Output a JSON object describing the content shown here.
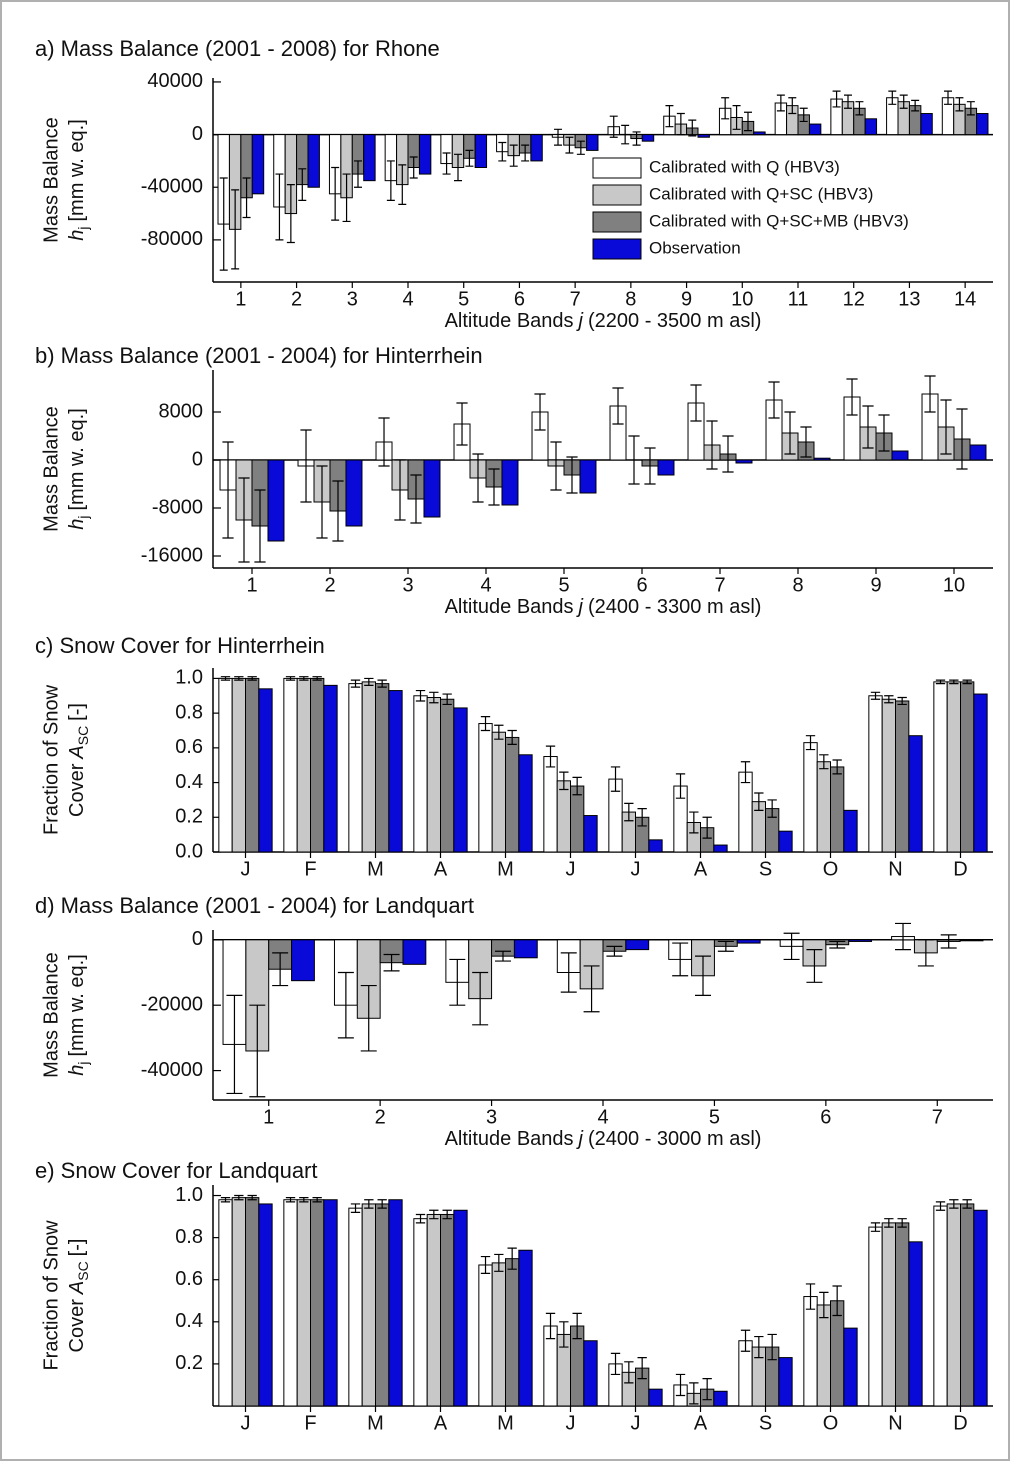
{
  "chart_data": [
    {
      "type": "bar",
      "title": "a) Mass Balance (2001 - 2008) for Rhone",
      "ylabel": "Mass Balance",
      "ylabel2": {
        "symbol": "h",
        "subscript": "j",
        "after": "[mm w. eq.]"
      },
      "xlabel": {
        "before": "Altitude Bands",
        "symbol": "j",
        "after": "(2200 - 3500 m asl)"
      },
      "categories": [
        "1",
        "2",
        "3",
        "4",
        "5",
        "6",
        "7",
        "8",
        "9",
        "10",
        "11",
        "12",
        "13",
        "14"
      ],
      "ylim": [
        -112000,
        43000
      ],
      "yticks": [
        40000,
        0,
        -40000,
        -80000
      ],
      "legend": "right",
      "series": [
        {
          "name": "Calibrated with Q (HBV3)",
          "color": "#ffffff",
          "values": [
            -68000,
            -55000,
            -45000,
            -35000,
            -22000,
            -13000,
            -2000,
            6000,
            14000,
            20000,
            24000,
            27000,
            28000,
            28000
          ],
          "errors": [
            35000,
            25000,
            20000,
            15000,
            8000,
            7000,
            6000,
            8000,
            8000,
            8000,
            6000,
            6000,
            5000,
            5000
          ]
        },
        {
          "name": "Calibrated with Q+SC (HBV3)",
          "color": "#c8c8c8",
          "values": [
            -72000,
            -60000,
            -48000,
            -38000,
            -25000,
            -16000,
            -8000,
            0,
            8000,
            13000,
            22000,
            25000,
            25000,
            23000
          ],
          "errors": [
            30000,
            22000,
            18000,
            15000,
            10000,
            8000,
            6000,
            7000,
            8000,
            9000,
            6000,
            5000,
            5000,
            5000
          ]
        },
        {
          "name": "Calibrated with Q+SC+MB (HBV3)",
          "color": "#808080",
          "values": [
            -48000,
            -38000,
            -30000,
            -25000,
            -18000,
            -14000,
            -10000,
            -3000,
            5000,
            10000,
            15000,
            20000,
            22000,
            20000
          ],
          "errors": [
            15000,
            12000,
            10000,
            8000,
            6000,
            6000,
            5000,
            5000,
            6000,
            7000,
            5000,
            5000,
            4000,
            5000
          ]
        },
        {
          "name": "Observation",
          "color": "#0a0ad8",
          "values": [
            -45000,
            -40000,
            -35000,
            -30000,
            -25000,
            -20000,
            -12000,
            -5000,
            -2000,
            2000,
            8000,
            12000,
            16000,
            16000
          ]
        }
      ]
    },
    {
      "type": "bar",
      "title": "b) Mass Balance (2001 - 2004) for Hinterrhein",
      "ylabel": "Mass Balance",
      "ylabel2": {
        "symbol": "h",
        "subscript": "j",
        "after": "[mm w. eq.]"
      },
      "xlabel": {
        "before": "Altitude Bands",
        "symbol": "j",
        "after": "(2400 - 3300 m asl)"
      },
      "categories": [
        "1",
        "2",
        "3",
        "4",
        "5",
        "6",
        "7",
        "8",
        "9",
        "10"
      ],
      "ylim": [
        -18000,
        15000
      ],
      "yticks": [
        8000,
        0,
        -8000,
        -16000
      ],
      "series": [
        {
          "color": "#ffffff",
          "values": [
            -5000,
            -1000,
            3000,
            6000,
            8000,
            9000,
            9500,
            10000,
            10500,
            11000
          ],
          "errors": [
            8000,
            6000,
            4000,
            3500,
            3000,
            3000,
            3000,
            3000,
            3000,
            3000
          ]
        },
        {
          "color": "#c8c8c8",
          "values": [
            -10000,
            -7000,
            -5000,
            -3000,
            -1000,
            0,
            2500,
            4500,
            5500,
            5500
          ],
          "errors": [
            7000,
            6000,
            5000,
            4000,
            4000,
            4000,
            4000,
            3500,
            3500,
            4500
          ]
        },
        {
          "color": "#808080",
          "values": [
            -11000,
            -8500,
            -6500,
            -4500,
            -2500,
            -1000,
            1000,
            3000,
            4500,
            3500
          ],
          "errors": [
            6000,
            5000,
            4000,
            3000,
            3000,
            3000,
            3000,
            2500,
            3000,
            5000
          ]
        },
        {
          "color": "#0a0ad8",
          "values": [
            -13500,
            -11000,
            -9500,
            -7500,
            -5500,
            -2500,
            -500,
            300,
            1500,
            2500
          ]
        }
      ]
    },
    {
      "type": "bar",
      "title": "c) Snow Cover for Hinterrhein",
      "ylabel": "Fraction of Snow",
      "ylabel2": {
        "before": "Cover",
        "symbol": "A",
        "subscript": "SC",
        "after": "[-]"
      },
      "categories": [
        "J",
        "F",
        "M",
        "A",
        "M",
        "J",
        "J",
        "A",
        "S",
        "O",
        "N",
        "D"
      ],
      "ylim": [
        0,
        1.06
      ],
      "yticks": [
        {
          "value": 1,
          "label": "1.0"
        },
        0.8,
        0.6,
        0.4,
        0.2,
        {
          "value": 0,
          "label": "0.0"
        }
      ],
      "series": [
        {
          "color": "#ffffff",
          "values": [
            1,
            1,
            0.97,
            0.9,
            0.74,
            0.55,
            0.42,
            0.38,
            0.46,
            0.63,
            0.9,
            0.98
          ],
          "errors": [
            0.01,
            0.01,
            0.02,
            0.03,
            0.04,
            0.06,
            0.07,
            0.07,
            0.06,
            0.04,
            0.02,
            0.01
          ]
        },
        {
          "color": "#c8c8c8",
          "values": [
            1,
            1,
            0.98,
            0.89,
            0.69,
            0.41,
            0.23,
            0.17,
            0.29,
            0.52,
            0.88,
            0.98
          ],
          "errors": [
            0.01,
            0.01,
            0.02,
            0.03,
            0.04,
            0.05,
            0.05,
            0.06,
            0.05,
            0.04,
            0.02,
            0.01
          ]
        },
        {
          "color": "#808080",
          "values": [
            1,
            1,
            0.97,
            0.88,
            0.66,
            0.38,
            0.2,
            0.14,
            0.25,
            0.49,
            0.87,
            0.98
          ],
          "errors": [
            0.01,
            0.01,
            0.02,
            0.03,
            0.04,
            0.05,
            0.05,
            0.06,
            0.05,
            0.04,
            0.02,
            0.01
          ]
        },
        {
          "color": "#0a0ad8",
          "values": [
            0.94,
            0.96,
            0.93,
            0.83,
            0.56,
            0.21,
            0.07,
            0.04,
            0.12,
            0.24,
            0.67,
            0.91
          ]
        }
      ]
    },
    {
      "type": "bar",
      "title": "d) Mass Balance (2001 - 2004) for Landquart",
      "ylabel": "Mass Balance",
      "ylabel2": {
        "symbol": "h",
        "subscript": "j",
        "after": "[mm w. eq.]"
      },
      "xlabel": {
        "before": "Altitude Bands",
        "symbol": "j",
        "after": "(2400 - 3000 m asl)"
      },
      "categories": [
        "1",
        "2",
        "3",
        "4",
        "5",
        "6",
        "7"
      ],
      "ylim": [
        -49000,
        3000
      ],
      "yticks": [
        0,
        -20000,
        -40000
      ],
      "series": [
        {
          "color": "#ffffff",
          "values": [
            -32000,
            -20000,
            -13000,
            -10000,
            -6000,
            -2000,
            1000
          ],
          "errors": [
            15000,
            10000,
            7000,
            6000,
            5000,
            4000,
            4000
          ]
        },
        {
          "color": "#c8c8c8",
          "values": [
            -34000,
            -24000,
            -18000,
            -15000,
            -11000,
            -8000,
            -4000
          ],
          "errors": [
            14000,
            10000,
            8000,
            7000,
            6000,
            5000,
            4000
          ]
        },
        {
          "color": "#808080",
          "values": [
            -9000,
            -7000,
            -5000,
            -3500,
            -2000,
            -1500,
            -500
          ],
          "errors": [
            5000,
            2500,
            1500,
            1500,
            1500,
            1000,
            2000
          ]
        },
        {
          "color": "#0a0ad8",
          "values": [
            -12500,
            -7500,
            -5500,
            -3000,
            -1000,
            -500,
            -300
          ]
        }
      ]
    },
    {
      "type": "bar",
      "title": "e) Snow Cover for Landquart",
      "ylabel": "Fraction of Snow",
      "ylabel2": {
        "before": "Cover",
        "symbol": "A",
        "subscript": "SC",
        "after": "[-]"
      },
      "categories": [
        "J",
        "F",
        "M",
        "A",
        "M",
        "J",
        "J",
        "A",
        "S",
        "O",
        "N",
        "D"
      ],
      "ylim": [
        0,
        1.05
      ],
      "yticks": [
        {
          "value": 1,
          "label": "1.0"
        },
        0.8,
        0.6,
        0.4,
        0.2
      ],
      "series": [
        {
          "color": "#ffffff",
          "values": [
            0.98,
            0.98,
            0.94,
            0.89,
            0.67,
            0.38,
            0.2,
            0.1,
            0.31,
            0.52,
            0.85,
            0.95
          ],
          "errors": [
            0.01,
            0.01,
            0.02,
            0.02,
            0.04,
            0.06,
            0.05,
            0.05,
            0.05,
            0.06,
            0.02,
            0.02
          ]
        },
        {
          "color": "#c8c8c8",
          "values": [
            0.99,
            0.98,
            0.96,
            0.91,
            0.68,
            0.34,
            0.16,
            0.06,
            0.28,
            0.48,
            0.87,
            0.96
          ],
          "errors": [
            0.01,
            0.01,
            0.02,
            0.02,
            0.04,
            0.06,
            0.05,
            0.05,
            0.05,
            0.06,
            0.02,
            0.02
          ]
        },
        {
          "color": "#808080",
          "values": [
            0.99,
            0.98,
            0.96,
            0.91,
            0.7,
            0.38,
            0.18,
            0.08,
            0.28,
            0.5,
            0.87,
            0.96
          ],
          "errors": [
            0.01,
            0.01,
            0.02,
            0.02,
            0.05,
            0.06,
            0.05,
            0.05,
            0.06,
            0.07,
            0.02,
            0.02
          ]
        },
        {
          "color": "#0a0ad8",
          "values": [
            0.96,
            0.98,
            0.98,
            0.93,
            0.74,
            0.31,
            0.08,
            0.07,
            0.23,
            0.37,
            0.78,
            0.93
          ]
        }
      ]
    }
  ]
}
